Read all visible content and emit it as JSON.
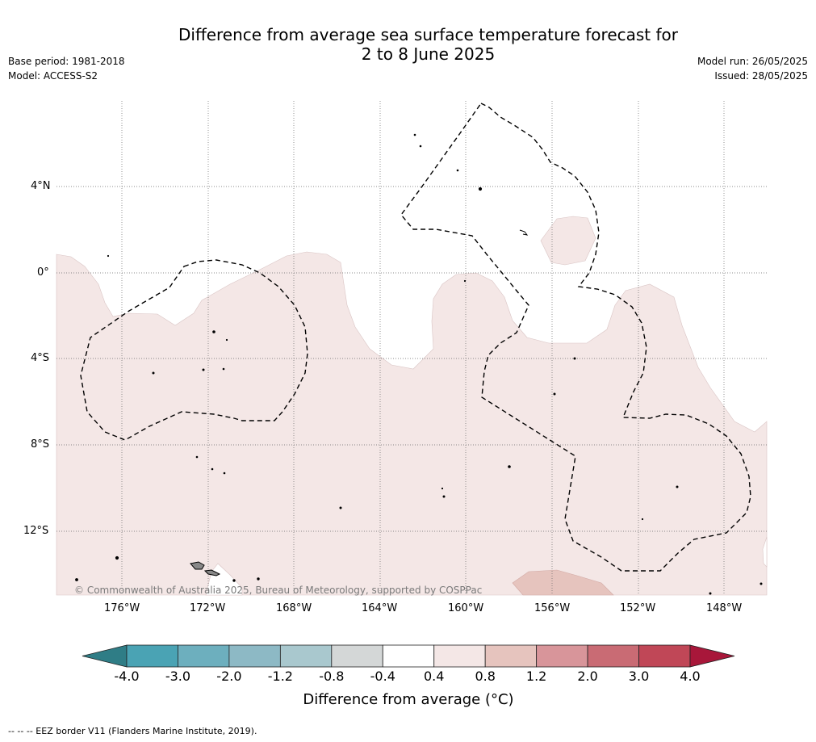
{
  "header": {
    "title_line1": "Difference from average sea surface temperature forecast for",
    "title_line2": "2 to 8 June 2025",
    "base_period": "Base period: 1981-2018",
    "model": "Model: ACCESS-S2",
    "model_run": "Model run: 26/05/2025",
    "issued": "Issued: 28/05/2025"
  },
  "map": {
    "lat_labels": [
      "4°N",
      "0°",
      "4°S",
      "8°S",
      "12°S"
    ],
    "lon_labels": [
      "176°W",
      "172°W",
      "168°W",
      "164°W",
      "160°W",
      "156°W",
      "152°W",
      "148°W"
    ],
    "copyright": "© Commonwealth of Australia 2025, Bureau of Meteorology, supported by COSPPac"
  },
  "colorbar": {
    "ticks": [
      "-4.0",
      "-3.0",
      "-2.0",
      "-1.2",
      "-0.8",
      "-0.4",
      "0.4",
      "0.8",
      "1.2",
      "2.0",
      "3.0",
      "4.0"
    ],
    "colors": [
      "#2f7d86",
      "#4aa3b4",
      "#6dafbe",
      "#8db9c5",
      "#a9c8ce",
      "#d4d7d7",
      "#ffffff",
      "#f4e7e6",
      "#e6c4be",
      "#d8959a",
      "#c96b74",
      "#c04757",
      "#a8173a"
    ],
    "label": "Difference from average (°C)"
  },
  "footer": "--  --  -- EEZ border V11 (Flanders Marine Institute, 2019)."
}
